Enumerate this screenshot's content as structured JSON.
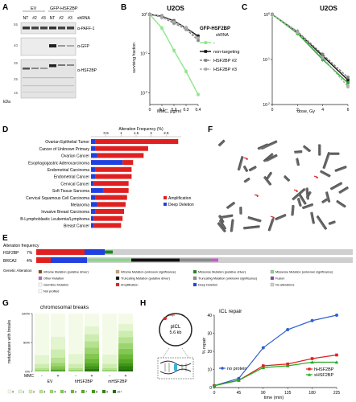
{
  "panels": {
    "A": "A",
    "B": "B",
    "C": "C",
    "D": "D",
    "E": "E",
    "F": "F",
    "G": "G",
    "H": "H"
  },
  "panelA": {
    "group_labels": [
      "EV",
      "GFP-HSF2BP"
    ],
    "lane_labels": [
      "NT",
      "#2",
      "#3",
      "NT",
      "#2",
      "#3"
    ],
    "shrna_label": "shRNA",
    "blot_labels": [
      "α-PAFF-1",
      "α-GFP",
      "α-HSF2BP"
    ],
    "kda_label": "kDa",
    "mw": [
      "55",
      "40",
      "35",
      "25",
      "15"
    ]
  },
  "panelB": {
    "title": "U2OS",
    "legend_header": "GFP-HSF2BP",
    "legend_sub": "shRNA",
    "ylabel": "surviving fraction",
    "xlabel": "MMC, μg/ml",
    "yticks": [
      "10^0",
      "10^-1",
      "10^-2"
    ],
    "xticks": [
      "0",
      "0.1",
      "0.2",
      "0.3",
      "0.4"
    ],
    "series": [
      {
        "name": "-",
        "color": "#8ee68e",
        "x": [
          0,
          0.1,
          0.2,
          0.3,
          0.4
        ],
        "y": [
          1,
          0.45,
          0.12,
          0.035,
          0.009
        ]
      },
      {
        "name": "non-targeting",
        "color": "#111111",
        "x": [
          0,
          0.1,
          0.2,
          0.3,
          0.4
        ],
        "y": [
          1,
          0.9,
          0.68,
          0.45,
          0.28
        ]
      },
      {
        "name": "HSF2BP #2",
        "color": "#808080",
        "x": [
          0,
          0.1,
          0.2,
          0.3,
          0.4
        ],
        "y": [
          1,
          0.85,
          0.6,
          0.42,
          0.22
        ]
      },
      {
        "name": "HSF2BP #3",
        "color": "#aaaaaa",
        "x": [
          0,
          0.1,
          0.2,
          0.3,
          0.4
        ],
        "y": [
          1,
          0.88,
          0.65,
          0.45,
          0.25
        ]
      }
    ]
  },
  "panelC": {
    "title": "U2OS",
    "xlabel": "dose, Gy",
    "ylabel": "surviving fraction",
    "xticks": [
      "0",
      "2",
      "4",
      "6"
    ],
    "series": [
      {
        "color": "#111111",
        "x": [
          0,
          2,
          4,
          6
        ],
        "y": [
          1,
          0.4,
          0.12,
          0.035
        ]
      },
      {
        "color": "#22aa22",
        "x": [
          0,
          2,
          4,
          6
        ],
        "y": [
          1,
          0.38,
          0.1,
          0.03
        ]
      },
      {
        "color": "#808080",
        "x": [
          0,
          2,
          4,
          6
        ],
        "y": [
          1,
          0.42,
          0.13,
          0.04
        ]
      },
      {
        "color": "#aaaaaa",
        "x": [
          0,
          2,
          4,
          6
        ],
        "y": [
          1,
          0.4,
          0.11,
          0.025
        ]
      }
    ]
  },
  "panelD": {
    "axis_title": "Alteration Frequency (%)",
    "ticks": [
      "0.5",
      "1",
      "1.5",
      "2",
      "2.5"
    ],
    "legend": [
      "Amplification",
      "Deep Deletion"
    ],
    "bars": [
      {
        "label": "Ovarian Epithelial Tumor",
        "blue": 0.15,
        "red": 2.75
      },
      {
        "label": "Cancer of Unknown Primary",
        "blue": 0.15,
        "red": 1.75
      },
      {
        "label": "Ovarian Cancer",
        "blue": 0.2,
        "red": 1.55
      },
      {
        "label": "Esophagogastric Adenocarcinoma",
        "blue": 1.05,
        "red": 0.35
      },
      {
        "label": "Endometrial Carcinoma",
        "blue": 0.15,
        "red": 1.2
      },
      {
        "label": "Endometrial Cancer",
        "blue": 0.15,
        "red": 1.2
      },
      {
        "label": "Cervical Cancer",
        "blue": 0.1,
        "red": 1.15
      },
      {
        "label": "Soft Tissue Sarcoma",
        "blue": 0.4,
        "red": 0.85
      },
      {
        "label": "Cervical Squamous Cell Carcinoma",
        "blue": 0.15,
        "red": 1.05
      },
      {
        "label": "Melanoma",
        "blue": 0.2,
        "red": 0.95
      },
      {
        "label": "Invasive Breast Carcinoma",
        "blue": 0.15,
        "red": 0.95
      },
      {
        "label": "B-Lymphoblastic Leukemia/Lymphoma",
        "blue": 0.1,
        "red": 0.95
      },
      {
        "label": "Breast Cancer",
        "blue": 0.1,
        "red": 0.9
      }
    ]
  },
  "panelE": {
    "freq_header": "Alteration frequency",
    "genes": [
      {
        "name": "HSF2BP",
        "pct": "7%"
      },
      {
        "name": "BRCA2",
        "pct": "4%"
      }
    ],
    "legend_title": "Genetic Alteration",
    "legend_items": [
      {
        "label": "Inframe Mutation (putative driver)",
        "color": "#7a4c1f"
      },
      {
        "label": "Inframe Mutation (unknown significance)",
        "color": "#c8a079"
      },
      {
        "label": "Missense Mutation (putative driver)",
        "color": "#1b8a1b"
      },
      {
        "label": "Missense Mutation (unknown significance)",
        "color": "#8fd28f"
      },
      {
        "label": "Other Mutation",
        "color": "#c060c0"
      },
      {
        "label": "Truncating Mutation (putative driver)",
        "color": "#111111"
      },
      {
        "label": "Truncating Mutation (unknown significance)",
        "color": "#8a8a8a"
      },
      {
        "label": "Fusion",
        "color": "#8a3fb0"
      },
      {
        "label": "Germline Mutation",
        "color": "#ffffff"
      },
      {
        "label": "Amplification",
        "color": "#e02020"
      },
      {
        "label": "Deep Deletion",
        "color": "#2040e0"
      },
      {
        "label": "No alterations",
        "color": "#cfcfcf"
      },
      {
        "label": "Not profiled",
        "color": "#ffffff"
      }
    ]
  },
  "panelG": {
    "title": "chromosomal breaks",
    "ylabel": "metaphases with breaks",
    "yticks": [
      "100%",
      "50%",
      "0%"
    ],
    "mmc_label": "MMC",
    "signs": [
      "-",
      "+",
      "-",
      "+",
      "-",
      "+"
    ],
    "groups": [
      "EV",
      "hHSF2BP",
      "mHSF2BP"
    ],
    "legend_numbers": [
      "0",
      "1",
      "2",
      "3",
      "4",
      "5",
      "6",
      "7",
      "8",
      "9",
      "10+"
    ]
  },
  "panelH": {
    "plasmid_name": "pICL",
    "plasmid_size": "5.6 kb",
    "plasmid_site": "SapI",
    "chart_title": "ICL repair",
    "ylabel": "% repair",
    "xlabel": "time (min)",
    "yticks": [
      "0",
      "10",
      "20",
      "30",
      "40"
    ],
    "xticks": [
      "0",
      "45",
      "90",
      "135",
      "180",
      "225"
    ],
    "series": [
      {
        "name": "no protein",
        "color": "#3060d0",
        "x": [
          0,
          45,
          90,
          135,
          180,
          225
        ],
        "y": [
          1,
          5,
          22,
          32,
          37,
          40
        ]
      },
      {
        "name": "hHSF2BP",
        "color": "#e02020",
        "x": [
          0,
          45,
          90,
          135,
          180,
          225
        ],
        "y": [
          1,
          4,
          12,
          13,
          16,
          18
        ]
      },
      {
        "name": "xHSF2BP",
        "color": "#22aa22",
        "x": [
          0,
          45,
          90,
          135,
          180,
          225
        ],
        "y": [
          1,
          4,
          11,
          12,
          14,
          14
        ]
      }
    ]
  },
  "chart_data": [
    {
      "type": "line",
      "title": "U2OS",
      "xlabel": "MMC, μg/ml",
      "ylabel": "surviving fraction",
      "yscale": "log",
      "x": [
        0,
        0.1,
        0.2,
        0.3,
        0.4
      ],
      "series": [
        {
          "name": "-",
          "values": [
            1,
            0.45,
            0.12,
            0.035,
            0.009
          ]
        },
        {
          "name": "non-targeting",
          "values": [
            1,
            0.9,
            0.68,
            0.45,
            0.28
          ]
        },
        {
          "name": "HSF2BP #2",
          "values": [
            1,
            0.85,
            0.6,
            0.42,
            0.22
          ]
        },
        {
          "name": "HSF2BP #3",
          "values": [
            1,
            0.88,
            0.65,
            0.45,
            0.25
          ]
        }
      ]
    },
    {
      "type": "line",
      "title": "U2OS",
      "xlabel": "dose, Gy",
      "ylabel": "surviving fraction",
      "yscale": "log",
      "x": [
        0,
        2,
        4,
        6
      ],
      "series": [
        {
          "values": [
            1,
            0.4,
            0.12,
            0.035
          ]
        },
        {
          "values": [
            1,
            0.38,
            0.1,
            0.03
          ]
        },
        {
          "values": [
            1,
            0.42,
            0.13,
            0.04
          ]
        },
        {
          "values": [
            1,
            0.4,
            0.11,
            0.025
          ]
        }
      ]
    },
    {
      "type": "bar",
      "xlabel": "Alteration Frequency (%)",
      "orientation": "horizontal",
      "stacked": true,
      "categories": [
        "Ovarian Epithelial Tumor",
        "Cancer of Unknown Primary",
        "Ovarian Cancer",
        "Esophagogastric Adenocarcinoma",
        "Endometrial Carcinoma",
        "Endometrial Cancer",
        "Cervical Cancer",
        "Soft Tissue Sarcoma",
        "Cervical Squamous Cell Carcinoma",
        "Melanoma",
        "Invasive Breast Carcinoma",
        "B-Lymphoblastic Leukemia/Lymphoma",
        "Breast Cancer"
      ],
      "series": [
        {
          "name": "Deep Deletion",
          "values": [
            0.15,
            0.15,
            0.2,
            1.05,
            0.15,
            0.15,
            0.1,
            0.4,
            0.15,
            0.2,
            0.15,
            0.1,
            0.1
          ]
        },
        {
          "name": "Amplification",
          "values": [
            2.75,
            1.75,
            1.55,
            0.35,
            1.2,
            1.2,
            1.15,
            0.85,
            1.05,
            0.95,
            0.95,
            0.95,
            0.9
          ]
        }
      ]
    },
    {
      "type": "line",
      "title": "ICL repair",
      "xlabel": "time (min)",
      "ylabel": "% repair",
      "ylim": [
        0,
        40
      ],
      "x": [
        0,
        45,
        90,
        135,
        180,
        225
      ],
      "series": [
        {
          "name": "no protein",
          "values": [
            1,
            5,
            22,
            32,
            37,
            40
          ]
        },
        {
          "name": "hHSF2BP",
          "values": [
            1,
            4,
            12,
            13,
            16,
            18
          ]
        },
        {
          "name": "xHSF2BP",
          "values": [
            1,
            4,
            11,
            12,
            14,
            14
          ]
        }
      ]
    }
  ]
}
